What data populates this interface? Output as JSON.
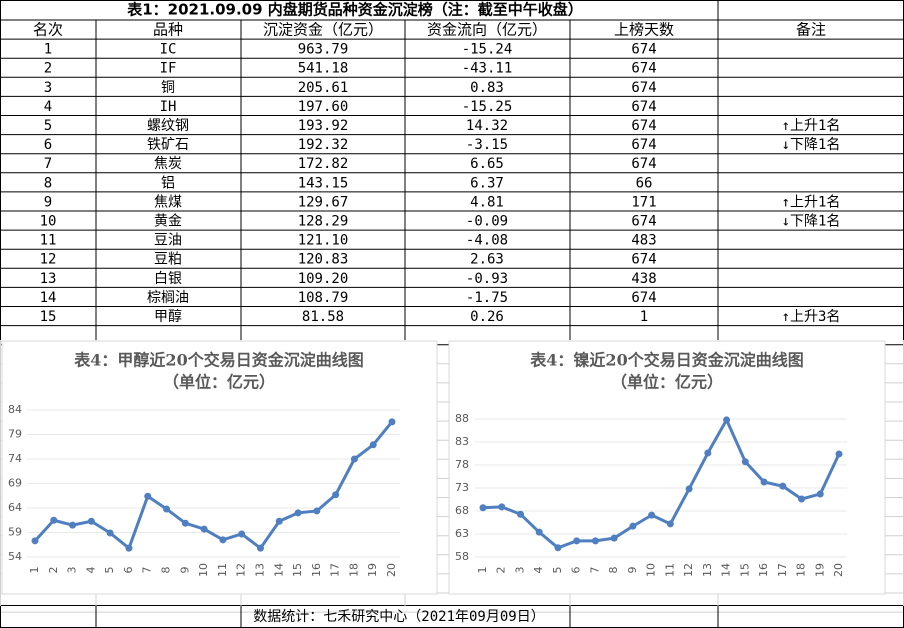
{
  "table": {
    "title": "表1：2021.09.09 内盘期货品种资金沉淀榜（注：截至中午收盘）",
    "columns": [
      "名次",
      "品种",
      "沉淀资金（亿元）",
      "资金流向（亿元）",
      "上榜天数",
      "备注"
    ],
    "rows": [
      [
        "1",
        "IC",
        "963.79",
        "-15.24",
        "674",
        null
      ],
      [
        "2",
        "IF",
        "541.18",
        "-43.11",
        "674",
        null
      ],
      [
        "3",
        "铜",
        "205.61",
        "0.83",
        "674",
        null
      ],
      [
        "4",
        "IH",
        "197.60",
        "-15.25",
        "674",
        null
      ],
      [
        "5",
        "螺纹钢",
        "193.92",
        "14.32",
        "674",
        "↑上升1名"
      ],
      [
        "6",
        "铁矿石",
        "192.32",
        "-3.15",
        "674",
        "↓下降1名"
      ],
      [
        "7",
        "焦炭",
        "172.82",
        "6.65",
        "674",
        null
      ],
      [
        "8",
        "铝",
        "143.15",
        "6.37",
        "66",
        null
      ],
      [
        "9",
        "焦煤",
        "129.67",
        "4.81",
        "171",
        "↑上升1名"
      ],
      [
        "10",
        "黄金",
        "128.29",
        "-0.09",
        "674",
        "↓下降1名"
      ],
      [
        "11",
        "豆油",
        "121.10",
        "-4.08",
        "483",
        null
      ],
      [
        "12",
        "豆粕",
        "120.83",
        "2.63",
        "674",
        null
      ],
      [
        "13",
        "白银",
        "109.20",
        "-0.93",
        "438",
        null
      ],
      [
        "14",
        "棕榈油",
        "108.79",
        "-1.75",
        "674",
        null
      ],
      [
        "15",
        "甲醇",
        "81.58",
        "0.26",
        "1",
        "↑上升3名"
      ]
    ]
  },
  "chart_data": [
    {
      "type": "line",
      "title": "表4：甲醇近20个交易日资金沉淀曲线图",
      "subtitle": "（单位：亿元）",
      "categories": [
        "1",
        "2",
        "3",
        "4",
        "5",
        "6",
        "7",
        "8",
        "9",
        "10",
        "11",
        "12",
        "13",
        "14",
        "15",
        "16",
        "17",
        "18",
        "19",
        "20"
      ],
      "values": [
        57.3,
        61.5,
        60.5,
        61.3,
        58.9,
        55.8,
        66.4,
        63.8,
        60.9,
        59.7,
        57.5,
        58.7,
        55.8,
        61.3,
        63.0,
        63.4,
        66.7,
        74.0,
        76.9,
        81.58
      ],
      "color": "#4f7fc0",
      "ylim": [
        54,
        84
      ],
      "yticks": [
        54,
        59,
        64,
        69,
        74,
        79,
        84
      ],
      "grid": true
    },
    {
      "type": "line",
      "title": "表4：镍近20个交易日资金沉淀曲线图",
      "subtitle": "（单位：亿元）",
      "categories": [
        "1",
        "2",
        "3",
        "4",
        "5",
        "6",
        "7",
        "8",
        "9",
        "10",
        "11",
        "12",
        "13",
        "14",
        "15",
        "16",
        "17",
        "18",
        "19",
        "20"
      ],
      "values": [
        68.7,
        68.9,
        67.3,
        63.4,
        60.0,
        61.5,
        61.5,
        62.1,
        64.7,
        67.1,
        65.2,
        72.8,
        80.6,
        87.8,
        78.7,
        74.3,
        73.4,
        70.6,
        71.7,
        80.4
      ],
      "color": "#4f7fc0",
      "ylim": [
        58,
        88
      ],
      "yticks": [
        58,
        63,
        68,
        73,
        78,
        83,
        88
      ],
      "grid": true
    }
  ],
  "footer": "数据统计：七禾研究中心（2021年09月09日）"
}
